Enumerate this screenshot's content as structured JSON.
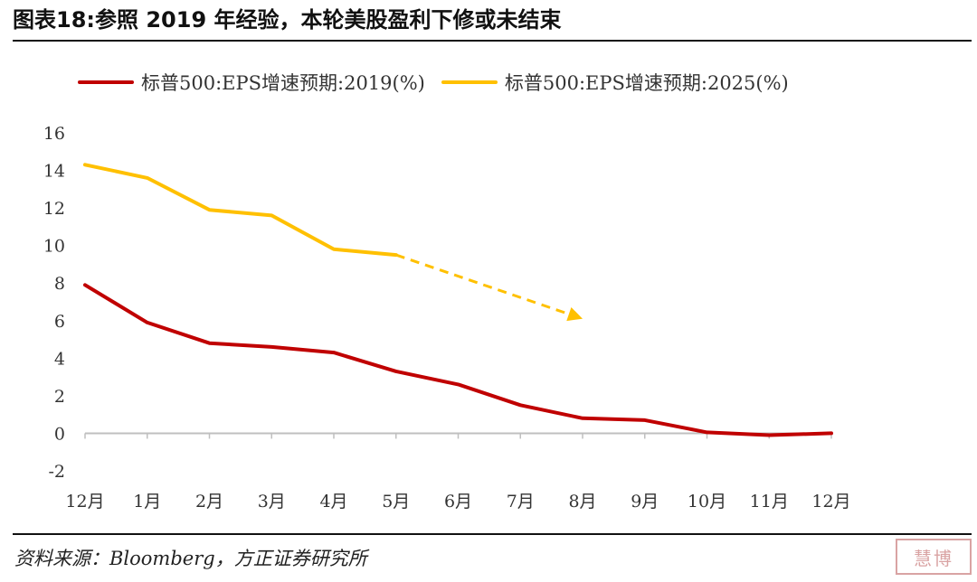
{
  "figure": {
    "title": "图表18:参照 2019 年经验，本轮美股盈利下修或未结束",
    "source": "资料来源：Bloomberg，方正证券研究所",
    "stamp_text": "慧博"
  },
  "colors": {
    "series_2019": "#c00000",
    "series_2025": "#ffc000",
    "axis": "#bfbfbf",
    "text": "#333333"
  },
  "chart_data": {
    "type": "line",
    "title": "",
    "xlabel": "",
    "ylabel": "",
    "categories": [
      "12月",
      "1月",
      "2月",
      "3月",
      "4月",
      "5月",
      "6月",
      "7月",
      "8月",
      "9月",
      "10月",
      "11月",
      "12月"
    ],
    "ylim": [
      -2,
      16
    ],
    "yticks": [
      -2,
      0,
      2,
      4,
      6,
      8,
      10,
      12,
      14,
      16
    ],
    "grid": false,
    "legend_position": "top",
    "series": [
      {
        "name": "标普500:EPS增速预期:2019(%)",
        "color": "#c00000",
        "values": [
          7.9,
          5.9,
          4.8,
          4.6,
          4.3,
          3.3,
          2.6,
          1.5,
          0.8,
          0.7,
          0.05,
          -0.1,
          0.0
        ]
      },
      {
        "name": "标普500:EPS增速预期:2025(%)",
        "color": "#ffc000",
        "values": [
          14.3,
          13.6,
          11.9,
          11.6,
          9.8,
          9.5,
          null,
          null,
          null,
          null,
          null,
          null,
          null
        ]
      }
    ],
    "annotations": [
      {
        "type": "dashed-arrow",
        "color": "#ffc000",
        "from": {
          "x": "5月",
          "y": 9.5
        },
        "to": {
          "x": "8月",
          "y": 6.1
        }
      }
    ]
  }
}
